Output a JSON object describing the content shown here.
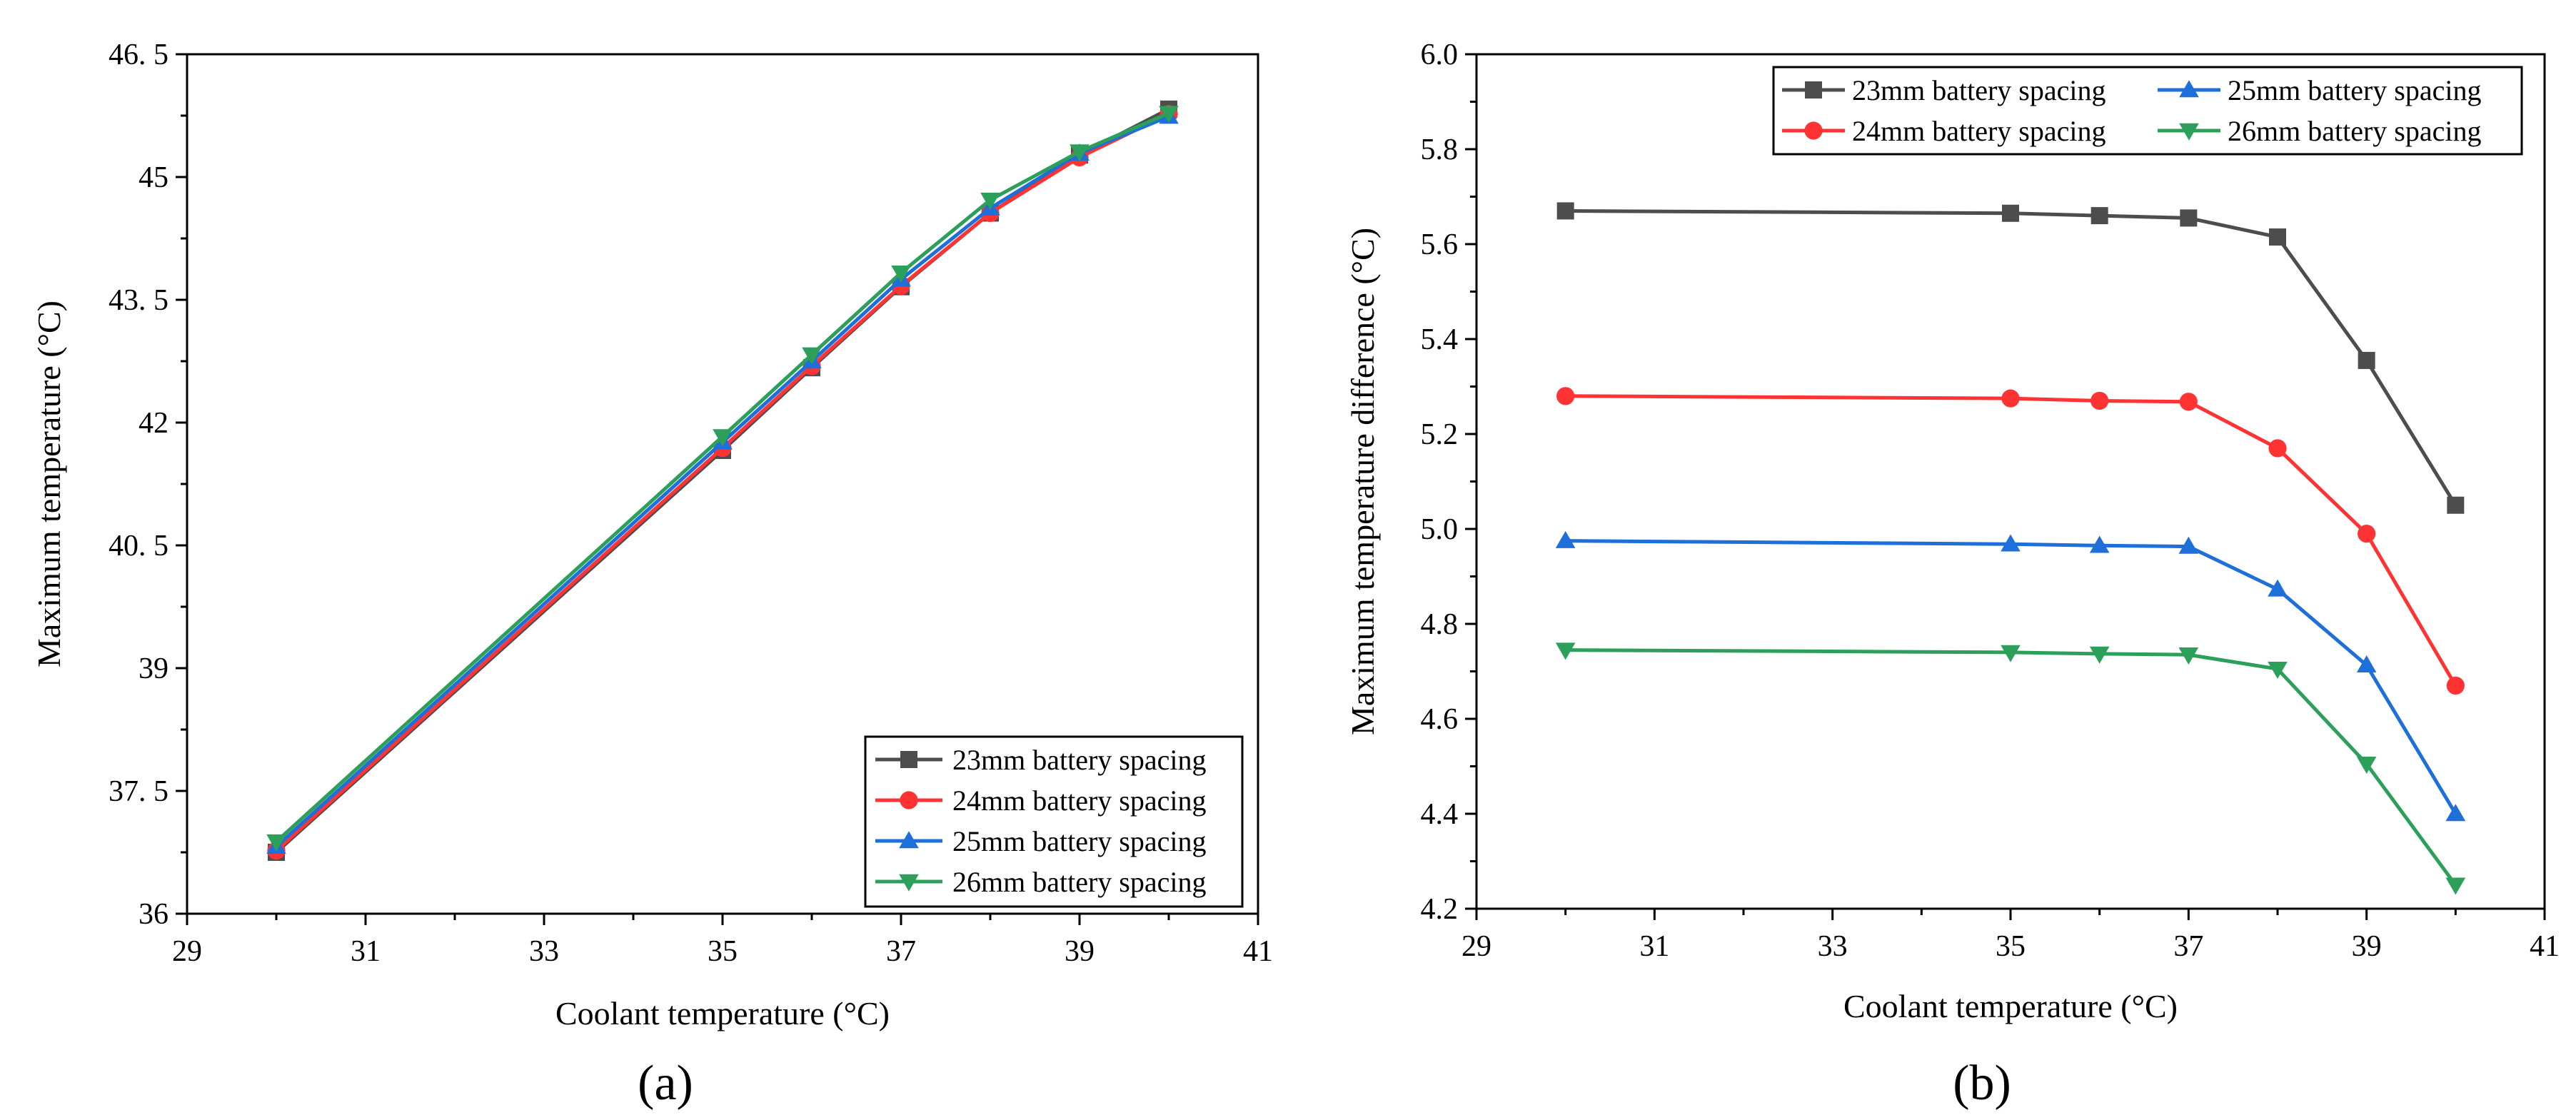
{
  "chart_data": [
    {
      "type": "line",
      "panel_label": "(a)",
      "xlabel": "Coolant temperature (°C)",
      "ylabel": "Maximum temperature (°C)",
      "xlim": [
        29,
        41
      ],
      "ylim": [
        36,
        46.5
      ],
      "x_ticks": [
        29,
        31,
        33,
        35,
        37,
        39,
        41
      ],
      "y_ticks": [
        36,
        37.5,
        39,
        40.5,
        42,
        43.5,
        45,
        46.5
      ],
      "y_tick_labels": [
        "36",
        "37. 5",
        "39",
        "40. 5",
        "42",
        "43. 5",
        "45",
        "46. 5"
      ],
      "x": [
        30,
        35,
        36,
        37,
        38,
        39,
        40
      ],
      "legend_position": "bottom-right",
      "series": [
        {
          "name": "23mm battery spacing",
          "color": "#4d4d4d",
          "marker": "square",
          "values": [
            36.75,
            41.66,
            42.67,
            43.66,
            44.56,
            45.27,
            45.83
          ]
        },
        {
          "name": "24mm battery spacing",
          "color": "#ff3333",
          "marker": "circle",
          "values": [
            36.77,
            41.69,
            42.69,
            43.67,
            44.56,
            45.24,
            45.77
          ]
        },
        {
          "name": "25mm battery spacing",
          "color": "#1e6fd9",
          "marker": "triangle-up",
          "values": [
            36.82,
            41.76,
            42.75,
            43.75,
            44.62,
            45.29,
            45.74
          ]
        },
        {
          "name": "26mm battery spacing",
          "color": "#2ca05a",
          "marker": "triangle-down",
          "values": [
            36.88,
            41.83,
            42.83,
            43.83,
            44.72,
            45.31,
            45.78
          ]
        }
      ]
    },
    {
      "type": "line",
      "panel_label": "(b)",
      "xlabel": "Coolant temperature (°C)",
      "ylabel": "Maximum temperature difference (°C)",
      "xlim": [
        29,
        41
      ],
      "ylim": [
        4.2,
        6.0
      ],
      "x_ticks": [
        29,
        31,
        33,
        35,
        37,
        39,
        41
      ],
      "y_ticks": [
        4.2,
        4.4,
        4.6,
        4.8,
        5.0,
        5.2,
        5.4,
        5.6,
        5.8,
        6.0
      ],
      "y_tick_labels": [
        "4.2",
        "4.4",
        "4.6",
        "4.8",
        "5.0",
        "5.2",
        "5.4",
        "5.6",
        "5.8",
        "6.0"
      ],
      "x": [
        30,
        35,
        36,
        37,
        38,
        39,
        40
      ],
      "legend_position": "top",
      "series": [
        {
          "name": "23mm battery spacing",
          "color": "#4d4d4d",
          "marker": "square",
          "values": [
            5.67,
            5.665,
            5.66,
            5.655,
            5.615,
            5.355,
            5.05
          ]
        },
        {
          "name": "24mm battery spacing",
          "color": "#ff3333",
          "marker": "circle",
          "values": [
            5.28,
            5.275,
            5.27,
            5.268,
            5.17,
            4.99,
            4.67
          ]
        },
        {
          "name": "25mm battery spacing",
          "color": "#1e6fd9",
          "marker": "triangle-up",
          "values": [
            4.975,
            4.968,
            4.965,
            4.963,
            4.873,
            4.713,
            4.4
          ]
        },
        {
          "name": "26mm battery spacing",
          "color": "#2ca05a",
          "marker": "triangle-down",
          "values": [
            4.745,
            4.74,
            4.737,
            4.735,
            4.705,
            4.505,
            4.25
          ]
        }
      ]
    }
  ]
}
